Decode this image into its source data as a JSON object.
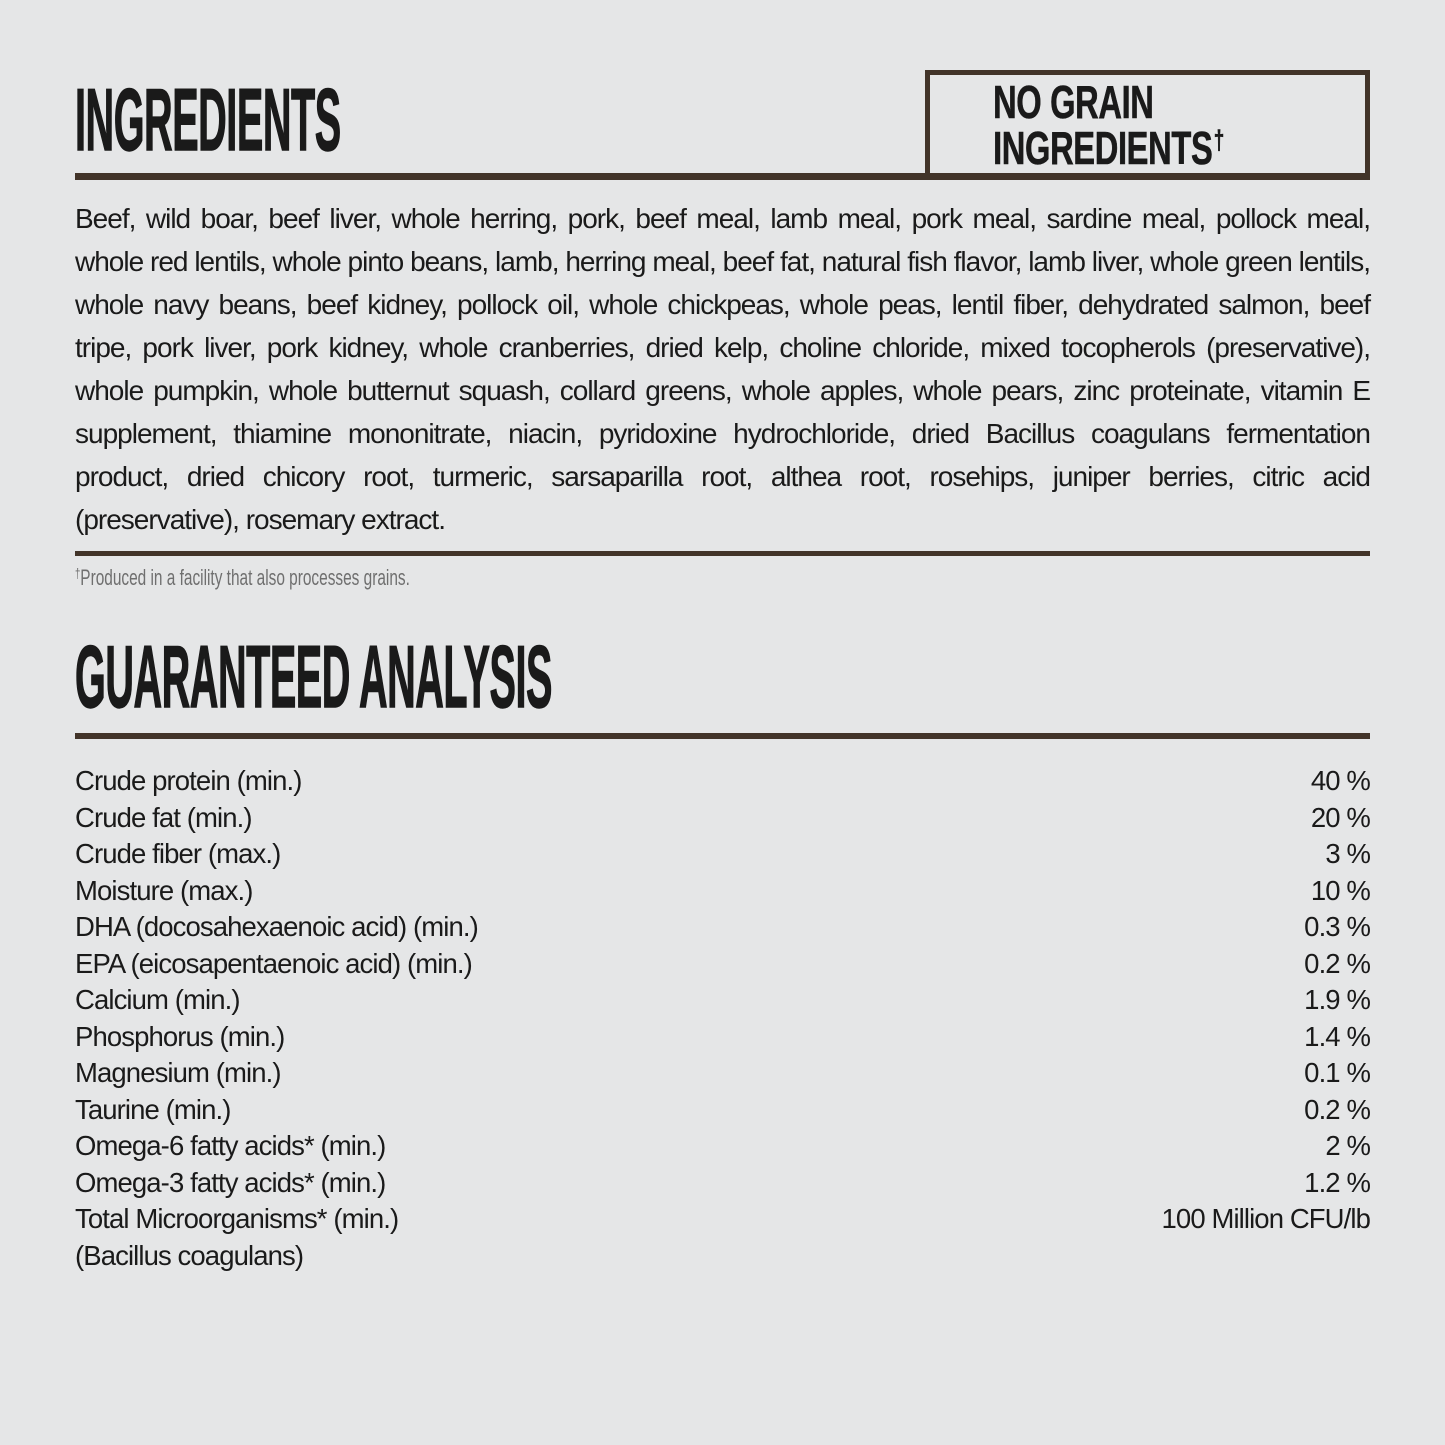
{
  "page": {
    "colors": {
      "bg": "#e5e6e7",
      "ink": "#1a1a1a",
      "accent": "#423429",
      "muted": "#6f6f6f"
    }
  },
  "ingredients": {
    "title": "INGREDIENTS",
    "badge_text": "NO GRAIN INGREDIENTS",
    "badge_dagger": "†",
    "body": "Beef, wild boar, beef liver, whole herring, pork, beef meal, lamb meal, pork meal, sardine meal, pollock meal, whole red lentils, whole pinto beans, lamb, herring meal, beef fat, natural fish flavor, lamb liver, whole green lentils, whole navy beans, beef kidney, pollock oil, whole chickpeas, whole peas, lentil fiber, dehydrated salmon, beef tripe, pork liver, pork kidney, whole cranberries, dried kelp, choline chloride, mixed tocopherols (preservative), whole pumpkin, whole butternut squash, collard greens, whole apples, whole pears, zinc proteinate, vitamin E supplement, thiamine mononitrate, niacin, pyridoxine hydrochloride, dried Bacillus coagulans fermentation product, dried chicory root, turmeric, sarsaparilla root, althea root, rosehips, juniper berries, citric acid (preservative), rosemary extract.",
    "footnote_dagger": "†",
    "footnote_text": "Produced in a facility that also processes grains."
  },
  "analysis": {
    "title": "GUARANTEED ANALYSIS",
    "rows": [
      {
        "label": "Crude protein (min.)",
        "value": "40 %"
      },
      {
        "label": "Crude fat (min.)",
        "value": "20 %"
      },
      {
        "label": "Crude fiber (max.)",
        "value": "3 %"
      },
      {
        "label": "Moisture (max.)",
        "value": "10 %"
      },
      {
        "label": "DHA (docosahexaenoic acid) (min.)",
        "value": "0.3 %"
      },
      {
        "label": "EPA (eicosapentaenoic acid) (min.)",
        "value": "0.2 %"
      },
      {
        "label": "Calcium (min.)",
        "value": "1.9 %"
      },
      {
        "label": "Phosphorus (min.)",
        "value": "1.4 %"
      },
      {
        "label": "Magnesium (min.)",
        "value": "0.1 %"
      },
      {
        "label": "Taurine (min.)",
        "value": "0.2 %"
      },
      {
        "label": "Omega-6 fatty acids* (min.)",
        "value": "2 %"
      },
      {
        "label": "Omega-3 fatty acids* (min.)",
        "value": "1.2 %"
      },
      {
        "label": "Total Microorganisms* (min.)",
        "value": "100 Million CFU/lb"
      },
      {
        "label": "(Bacillus coagulans)",
        "value": ""
      }
    ]
  }
}
